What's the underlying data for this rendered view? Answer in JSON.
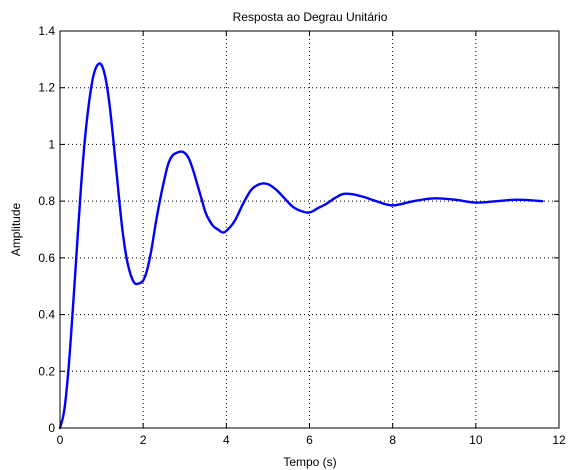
{
  "chart_data": {
    "type": "line",
    "title": "Resposta ao Degrau Unitário",
    "xlabel": "Tempo (s)",
    "ylabel": "Amplitude",
    "xlim": [
      0,
      12
    ],
    "ylim": [
      0,
      1.4
    ],
    "grid": true,
    "x_ticks": [
      0,
      2,
      4,
      6,
      8,
      10,
      12
    ],
    "y_ticks": [
      0,
      0.2,
      0.4,
      0.6,
      0.8,
      1,
      1.2,
      1.4
    ],
    "x_tick_labels": [
      "0",
      "2",
      "4",
      "6",
      "8",
      "10",
      "12"
    ],
    "y_tick_labels": [
      "0",
      "0.2",
      "0.4",
      "0.6",
      "0.8",
      "1",
      "1.2",
      "1.4"
    ],
    "series": [
      {
        "color": "#0000ff",
        "x": [
          0,
          0.1,
          0.2,
          0.3,
          0.4,
          0.5,
          0.6,
          0.7,
          0.8,
          0.9,
          1.0,
          1.1,
          1.2,
          1.3,
          1.4,
          1.5,
          1.6,
          1.7,
          1.8,
          1.9,
          2.0,
          2.1,
          2.2,
          2.3,
          2.4,
          2.5,
          2.6,
          2.7,
          2.8,
          2.9,
          3.0,
          3.1,
          3.2,
          3.3,
          3.4,
          3.5,
          3.6,
          3.7,
          3.8,
          3.9,
          4.0,
          4.2,
          4.4,
          4.6,
          4.8,
          5.0,
          5.2,
          5.4,
          5.6,
          5.8,
          6.0,
          6.2,
          6.4,
          6.6,
          6.8,
          7.0,
          7.3,
          7.6,
          8.0,
          8.5,
          9.0,
          9.5,
          10.0,
          10.5,
          11.0,
          11.6
        ],
        "values": [
          0.0,
          0.06,
          0.2,
          0.4,
          0.62,
          0.84,
          1.02,
          1.15,
          1.24,
          1.28,
          1.28,
          1.23,
          1.13,
          0.99,
          0.84,
          0.7,
          0.6,
          0.54,
          0.51,
          0.51,
          0.52,
          0.56,
          0.63,
          0.72,
          0.8,
          0.87,
          0.93,
          0.96,
          0.97,
          0.975,
          0.97,
          0.95,
          0.91,
          0.86,
          0.81,
          0.76,
          0.73,
          0.71,
          0.7,
          0.69,
          0.695,
          0.73,
          0.79,
          0.84,
          0.86,
          0.86,
          0.84,
          0.81,
          0.78,
          0.765,
          0.76,
          0.775,
          0.79,
          0.81,
          0.825,
          0.825,
          0.815,
          0.8,
          0.785,
          0.8,
          0.81,
          0.805,
          0.795,
          0.8,
          0.805,
          0.8
        ]
      }
    ]
  }
}
